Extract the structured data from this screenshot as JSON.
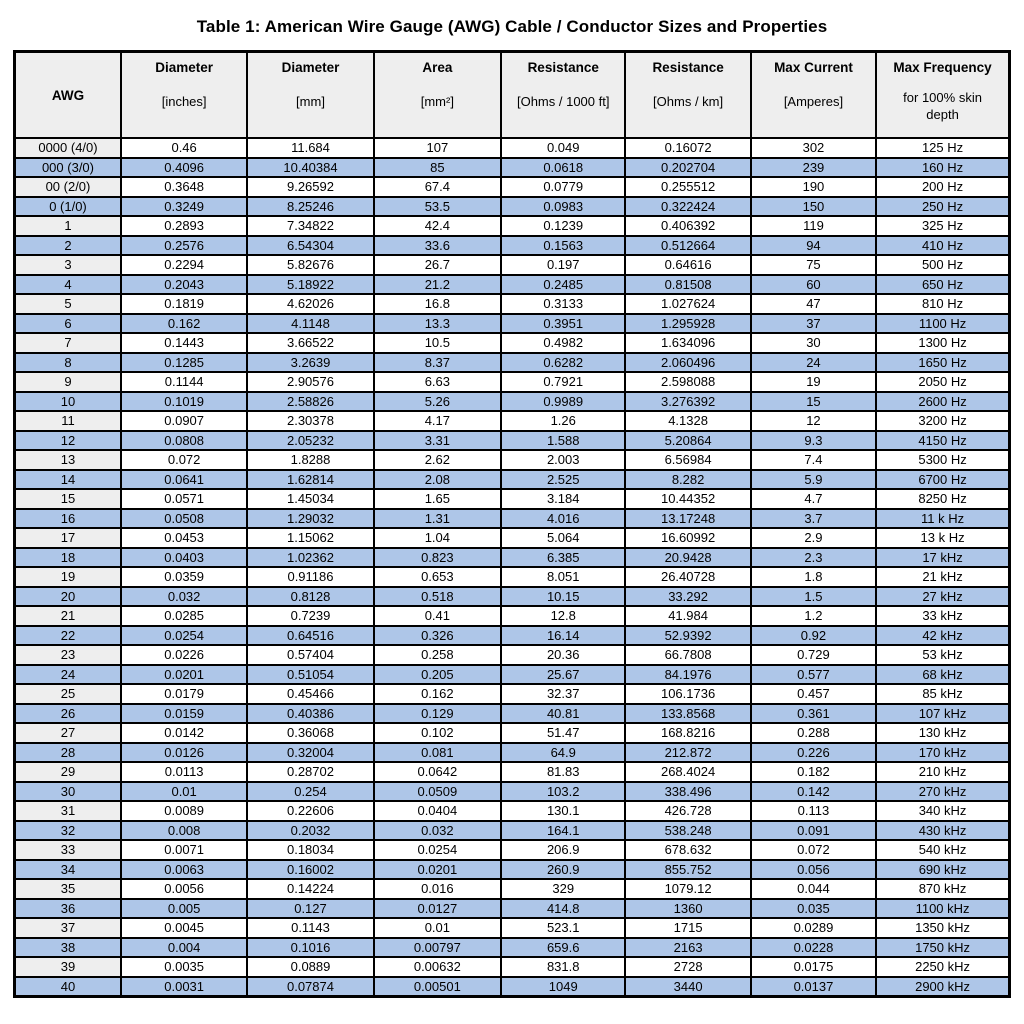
{
  "title": "Table 1: American Wire Gauge (AWG) Cable / Conductor Sizes and Properties",
  "colors": {
    "row_stripe_blue": "#aec6e8",
    "header_gray": "#eeeeee",
    "awg_column_gray": "#eeeeee",
    "border": "#000000",
    "background": "#ffffff",
    "text": "#000000"
  },
  "table": {
    "column_keys": [
      "awg",
      "diameter-in",
      "diameter-mm",
      "area",
      "resistance-1000ft",
      "resistance-km",
      "max-current",
      "max-frequency"
    ],
    "columns": [
      {
        "label": "AWG",
        "unit": ""
      },
      {
        "label": "Diameter",
        "unit": "[inches]"
      },
      {
        "label": "Diameter",
        "unit": "[mm]"
      },
      {
        "label": "Area",
        "unit": "[mm²]"
      },
      {
        "label": "Resistance",
        "unit": "[Ohms / 1000 ft]"
      },
      {
        "label": "Resistance",
        "unit": "[Ohms / km]"
      },
      {
        "label": "Max Current",
        "unit": "[Amperes]"
      },
      {
        "label": "Max Frequency",
        "unit": "for 100% skin depth"
      }
    ],
    "rows": [
      [
        "0000 (4/0)",
        "0.46",
        "11.684",
        "107",
        "0.049",
        "0.16072",
        "302",
        "125 Hz"
      ],
      [
        "000 (3/0)",
        "0.4096",
        "10.40384",
        "85",
        "0.0618",
        "0.202704",
        "239",
        "160 Hz"
      ],
      [
        "00 (2/0)",
        "0.3648",
        "9.26592",
        "67.4",
        "0.0779",
        "0.255512",
        "190",
        "200 Hz"
      ],
      [
        "0 (1/0)",
        "0.3249",
        "8.25246",
        "53.5",
        "0.0983",
        "0.322424",
        "150",
        "250 Hz"
      ],
      [
        "1",
        "0.2893",
        "7.34822",
        "42.4",
        "0.1239",
        "0.406392",
        "119",
        "325 Hz"
      ],
      [
        "2",
        "0.2576",
        "6.54304",
        "33.6",
        "0.1563",
        "0.512664",
        "94",
        "410 Hz"
      ],
      [
        "3",
        "0.2294",
        "5.82676",
        "26.7",
        "0.197",
        "0.64616",
        "75",
        "500 Hz"
      ],
      [
        "4",
        "0.2043",
        "5.18922",
        "21.2",
        "0.2485",
        "0.81508",
        "60",
        "650 Hz"
      ],
      [
        "5",
        "0.1819",
        "4.62026",
        "16.8",
        "0.3133",
        "1.027624",
        "47",
        "810 Hz"
      ],
      [
        "6",
        "0.162",
        "4.1148",
        "13.3",
        "0.3951",
        "1.295928",
        "37",
        "1100 Hz"
      ],
      [
        "7",
        "0.1443",
        "3.66522",
        "10.5",
        "0.4982",
        "1.634096",
        "30",
        "1300 Hz"
      ],
      [
        "8",
        "0.1285",
        "3.2639",
        "8.37",
        "0.6282",
        "2.060496",
        "24",
        "1650 Hz"
      ],
      [
        "9",
        "0.1144",
        "2.90576",
        "6.63",
        "0.7921",
        "2.598088",
        "19",
        "2050 Hz"
      ],
      [
        "10",
        "0.1019",
        "2.58826",
        "5.26",
        "0.9989",
        "3.276392",
        "15",
        "2600 Hz"
      ],
      [
        "11",
        "0.0907",
        "2.30378",
        "4.17",
        "1.26",
        "4.1328",
        "12",
        "3200 Hz"
      ],
      [
        "12",
        "0.0808",
        "2.05232",
        "3.31",
        "1.588",
        "5.20864",
        "9.3",
        "4150 Hz"
      ],
      [
        "13",
        "0.072",
        "1.8288",
        "2.62",
        "2.003",
        "6.56984",
        "7.4",
        "5300 Hz"
      ],
      [
        "14",
        "0.0641",
        "1.62814",
        "2.08",
        "2.525",
        "8.282",
        "5.9",
        "6700 Hz"
      ],
      [
        "15",
        "0.0571",
        "1.45034",
        "1.65",
        "3.184",
        "10.44352",
        "4.7",
        "8250 Hz"
      ],
      [
        "16",
        "0.0508",
        "1.29032",
        "1.31",
        "4.016",
        "13.17248",
        "3.7",
        "11 k Hz"
      ],
      [
        "17",
        "0.0453",
        "1.15062",
        "1.04",
        "5.064",
        "16.60992",
        "2.9",
        "13 k Hz"
      ],
      [
        "18",
        "0.0403",
        "1.02362",
        "0.823",
        "6.385",
        "20.9428",
        "2.3",
        "17 kHz"
      ],
      [
        "19",
        "0.0359",
        "0.91186",
        "0.653",
        "8.051",
        "26.40728",
        "1.8",
        "21 kHz"
      ],
      [
        "20",
        "0.032",
        "0.8128",
        "0.518",
        "10.15",
        "33.292",
        "1.5",
        "27 kHz"
      ],
      [
        "21",
        "0.0285",
        "0.7239",
        "0.41",
        "12.8",
        "41.984",
        "1.2",
        "33 kHz"
      ],
      [
        "22",
        "0.0254",
        "0.64516",
        "0.326",
        "16.14",
        "52.9392",
        "0.92",
        "42 kHz"
      ],
      [
        "23",
        "0.0226",
        "0.57404",
        "0.258",
        "20.36",
        "66.7808",
        "0.729",
        "53 kHz"
      ],
      [
        "24",
        "0.0201",
        "0.51054",
        "0.205",
        "25.67",
        "84.1976",
        "0.577",
        "68 kHz"
      ],
      [
        "25",
        "0.0179",
        "0.45466",
        "0.162",
        "32.37",
        "106.1736",
        "0.457",
        "85 kHz"
      ],
      [
        "26",
        "0.0159",
        "0.40386",
        "0.129",
        "40.81",
        "133.8568",
        "0.361",
        "107 kHz"
      ],
      [
        "27",
        "0.0142",
        "0.36068",
        "0.102",
        "51.47",
        "168.8216",
        "0.288",
        "130 kHz"
      ],
      [
        "28",
        "0.0126",
        "0.32004",
        "0.081",
        "64.9",
        "212.872",
        "0.226",
        "170 kHz"
      ],
      [
        "29",
        "0.0113",
        "0.28702",
        "0.0642",
        "81.83",
        "268.4024",
        "0.182",
        "210 kHz"
      ],
      [
        "30",
        "0.01",
        "0.254",
        "0.0509",
        "103.2",
        "338.496",
        "0.142",
        "270 kHz"
      ],
      [
        "31",
        "0.0089",
        "0.22606",
        "0.0404",
        "130.1",
        "426.728",
        "0.113",
        "340 kHz"
      ],
      [
        "32",
        "0.008",
        "0.2032",
        "0.032",
        "164.1",
        "538.248",
        "0.091",
        "430 kHz"
      ],
      [
        "33",
        "0.0071",
        "0.18034",
        "0.0254",
        "206.9",
        "678.632",
        "0.072",
        "540 kHz"
      ],
      [
        "34",
        "0.0063",
        "0.16002",
        "0.0201",
        "260.9",
        "855.752",
        "0.056",
        "690 kHz"
      ],
      [
        "35",
        "0.0056",
        "0.14224",
        "0.016",
        "329",
        "1079.12",
        "0.044",
        "870 kHz"
      ],
      [
        "36",
        "0.005",
        "0.127",
        "0.0127",
        "414.8",
        "1360",
        "0.035",
        "1100 kHz"
      ],
      [
        "37",
        "0.0045",
        "0.1143",
        "0.01",
        "523.1",
        "1715",
        "0.0289",
        "1350 kHz"
      ],
      [
        "38",
        "0.004",
        "0.1016",
        "0.00797",
        "659.6",
        "2163",
        "0.0228",
        "1750 kHz"
      ],
      [
        "39",
        "0.0035",
        "0.0889",
        "0.00632",
        "831.8",
        "2728",
        "0.0175",
        "2250 kHz"
      ],
      [
        "40",
        "0.0031",
        "0.07874",
        "0.00501",
        "1049",
        "3440",
        "0.0137",
        "2900 kHz"
      ]
    ]
  }
}
